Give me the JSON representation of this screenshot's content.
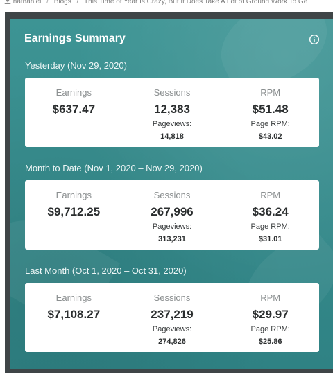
{
  "breadcrumb": {
    "items": [
      "nathaniel",
      "Blogs",
      "This Time of Year Is Crazy, But It Does Take A Lot of Ground Work To Ge"
    ],
    "separator": "/"
  },
  "card": {
    "title": "Earnings Summary",
    "info_icon": "info-circle-icon",
    "sections": [
      {
        "label": "Yesterday (Nov 29, 2020)",
        "earnings": {
          "label": "Earnings",
          "value": "$637.47"
        },
        "sessions": {
          "label": "Sessions",
          "value": "12,383",
          "sub_label": "Pageviews:",
          "sub_value": "14,818"
        },
        "rpm": {
          "label": "RPM",
          "value": "$51.48",
          "sub_label": "Page RPM:",
          "sub_value": "$43.02"
        }
      },
      {
        "label": "Month to Date (Nov 1, 2020 – Nov 29, 2020)",
        "earnings": {
          "label": "Earnings",
          "value": "$9,712.25"
        },
        "sessions": {
          "label": "Sessions",
          "value": "267,996",
          "sub_label": "Pageviews:",
          "sub_value": "313,231"
        },
        "rpm": {
          "label": "RPM",
          "value": "$36.24",
          "sub_label": "Page RPM:",
          "sub_value": "$31.01"
        }
      },
      {
        "label": "Last Month (Oct 1, 2020 – Oct 31, 2020)",
        "earnings": {
          "label": "Earnings",
          "value": "$7,108.27"
        },
        "sessions": {
          "label": "Sessions",
          "value": "237,219",
          "sub_label": "Pageviews:",
          "sub_value": "274,826"
        },
        "rpm": {
          "label": "RPM",
          "value": "$29.97",
          "sub_label": "Page RPM:",
          "sub_value": "$25.86"
        }
      }
    ]
  },
  "colors": {
    "card_background": "#3a8f8f",
    "panel_background": "#ffffff",
    "frame": "#3f4547"
  }
}
